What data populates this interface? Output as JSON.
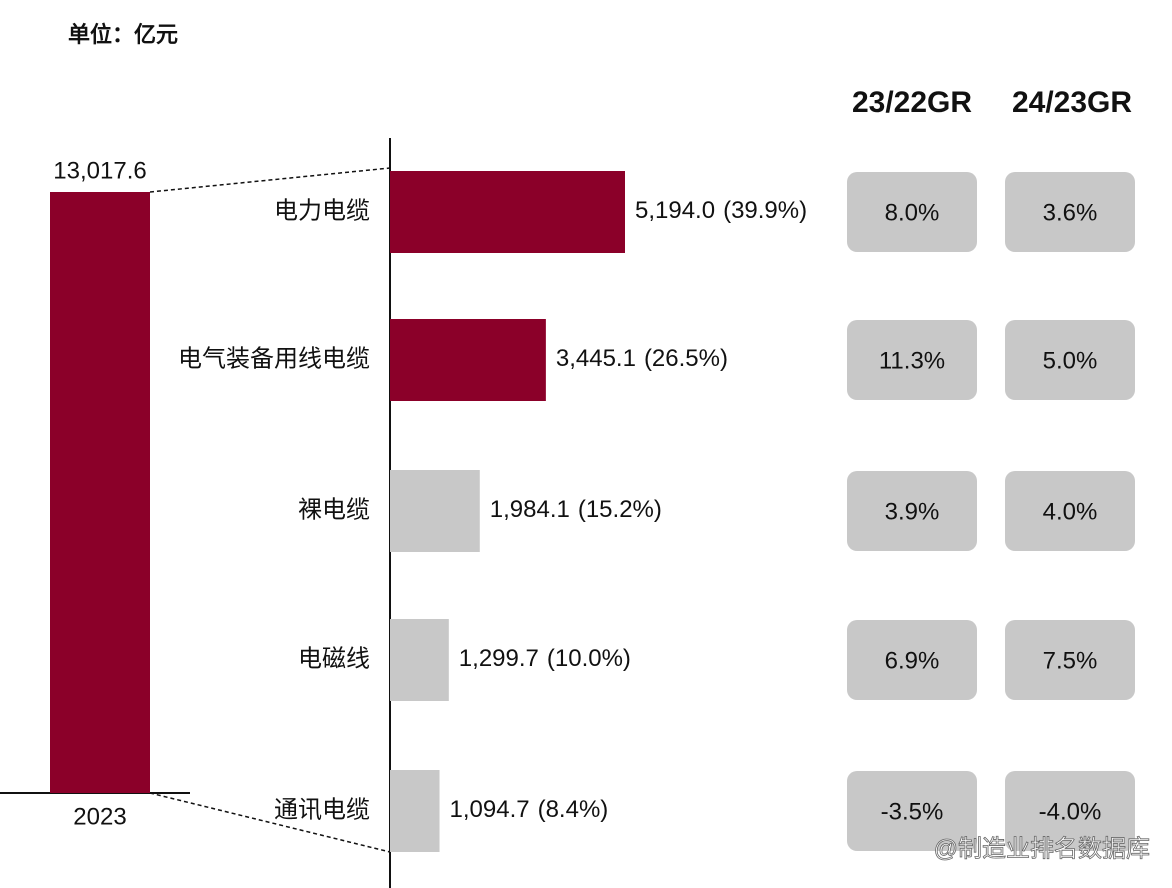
{
  "chart_data": {
    "type": "bar",
    "unit": "单位：亿元",
    "total": {
      "category": "2023",
      "value": 13017.6,
      "value_label": "13,017.6",
      "color": "#8b0029"
    },
    "categories": [
      "电力电缆",
      "电气装备用线电缆",
      "裸电缆",
      "电磁线",
      "通讯电缆"
    ],
    "values": [
      5194.0,
      3445.1,
      1984.1,
      1299.7,
      1094.7
    ],
    "value_labels": [
      "5,194.0",
      "3,445.1",
      "1,984.1",
      "1,299.7",
      "1,094.7"
    ],
    "shares": [
      39.9,
      26.5,
      15.2,
      10.0,
      8.4
    ],
    "share_labels": [
      "(39.9%)",
      "(26.5%)",
      "(15.2%)",
      "(10.0%)",
      "(8.4%)"
    ],
    "colors": [
      "#8b0029",
      "#8b0029",
      "#c8c8c8",
      "#c8c8c8",
      "#c8c8c8"
    ],
    "growth": {
      "headers": [
        "23/22GR",
        "24/23GR"
      ],
      "values": [
        [
          8.0,
          3.6
        ],
        [
          11.3,
          5.0
        ],
        [
          3.9,
          4.0
        ],
        [
          6.9,
          7.5
        ],
        [
          -3.5,
          -4.0
        ]
      ],
      "labels": [
        [
          "8.0%",
          "3.6%"
        ],
        [
          "11.3%",
          "5.0%"
        ],
        [
          "3.9%",
          "4.0%"
        ],
        [
          "6.9%",
          "7.5%"
        ],
        [
          "-3.5%",
          "-4.0%"
        ]
      ],
      "color": "#c8c8c8"
    },
    "watermark": "@制造业排名数据库"
  }
}
